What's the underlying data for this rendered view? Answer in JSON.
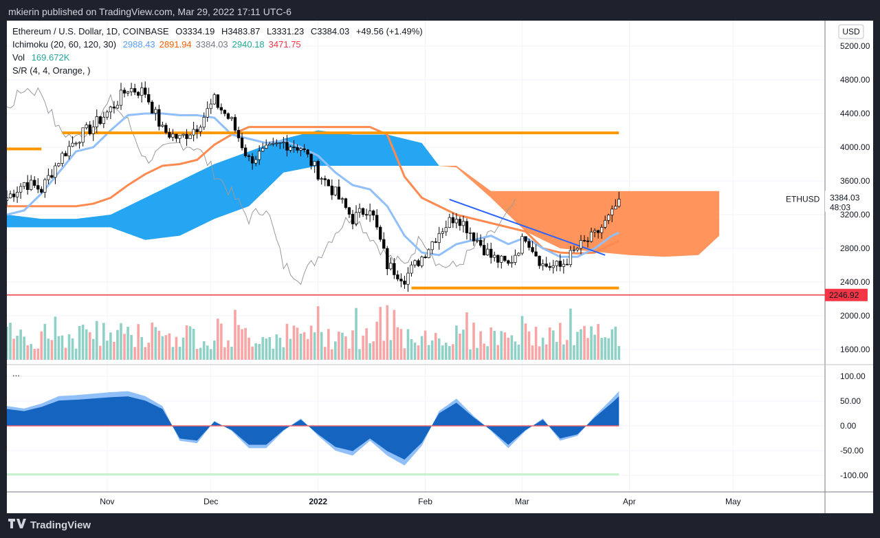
{
  "header": {
    "published": "mkierin published on TradingView.com, Mar 29, 2022 17:11 UTC-6"
  },
  "legend": {
    "symbol": "Ethereum / U.S. Dollar, 1D, COINBASE",
    "open": "O3334.19",
    "high": "H3483.87",
    "low": "L3331.23",
    "close": "C3384.03",
    "change": "+49.56 (+1.49%)",
    "ichimoku": "Ichimoku (20, 60, 120, 30)",
    "ichi_values": [
      {
        "v": "2988.43",
        "c": "#5b9cf6"
      },
      {
        "v": "2891.94",
        "c": "#ff5d00"
      },
      {
        "v": "3384.03",
        "c": "#787b86"
      },
      {
        "v": "2940.18",
        "c": "#22ab94"
      },
      {
        "v": "3471.75",
        "c": "#f23645"
      }
    ],
    "vol": "Vol",
    "vol_value": "169.672K",
    "sr": "S/R (4, 4, Orange, )",
    "osc": "..."
  },
  "price_axis": {
    "currency": "USD",
    "ticks": [
      "5200.00",
      "4800.00",
      "4400.00",
      "4000.00",
      "3600.00",
      "3200.00",
      "2800.00",
      "2400.00",
      "2000.00",
      "1600.00"
    ],
    "last_label": "3384.03",
    "countdown": "48:03",
    "symbol_label": "ETHUSD",
    "red_level_label": "2246.92"
  },
  "osc_axis": {
    "ticks": [
      "100.00",
      "50.00",
      "0.00",
      "-50.00",
      "-100.00"
    ]
  },
  "time_axis": {
    "ticks": [
      {
        "d": "2021-11-01",
        "t": "Nov"
      },
      {
        "d": "2021-12-01",
        "t": "Dec"
      },
      {
        "d": "2022-01-01",
        "t": "2022"
      },
      {
        "d": "2022-02-01",
        "t": "Feb"
      },
      {
        "d": "2022-03-01",
        "t": "Mar"
      },
      {
        "d": "2022-04-01",
        "t": "Apr"
      },
      {
        "d": "2022-05-01",
        "t": "May"
      }
    ]
  },
  "footer": {
    "brand": "TradingView"
  },
  "colors": {
    "up": "#26a69a",
    "down": "#000000",
    "tenkan": "#90bff9",
    "kijun": "#ff8a50",
    "cloud_bull": "#0097f0",
    "cloud_bear": "#ff8140",
    "sr": "#ff9800",
    "red_level": "#f23645",
    "trend": "#2962ff"
  },
  "chart_data": {
    "type": "candlestick",
    "ylim": [
      1500,
      5400
    ],
    "grid": true,
    "dates": [
      "2021-10-03",
      "2021-10-08",
      "2021-10-13",
      "2021-10-18",
      "2021-10-23",
      "2021-10-28",
      "2021-11-02",
      "2021-11-07",
      "2021-11-12",
      "2021-11-17",
      "2021-11-22",
      "2021-11-27",
      "2021-12-02",
      "2021-12-07",
      "2021-12-12",
      "2021-12-17",
      "2021-12-22",
      "2021-12-27",
      "2022-01-01",
      "2022-01-06",
      "2022-01-11",
      "2022-01-16",
      "2022-01-21",
      "2022-01-26",
      "2022-01-31",
      "2022-02-05",
      "2022-02-10",
      "2022-02-15",
      "2022-02-20",
      "2022-02-25",
      "2022-03-02",
      "2022-03-07",
      "2022-03-12",
      "2022-03-17",
      "2022-03-22",
      "2022-03-27",
      "2022-03-29"
    ],
    "close": [
      3400,
      3580,
      3500,
      3850,
      4100,
      4250,
      4450,
      4700,
      4650,
      4200,
      4100,
      4250,
      4550,
      4300,
      3850,
      3950,
      4050,
      4000,
      3700,
      3450,
      3150,
      3300,
      2600,
      2450,
      2700,
      3000,
      3200,
      2950,
      2700,
      2600,
      2950,
      2600,
      2580,
      2800,
      2950,
      3200,
      3384
    ],
    "tenkan": [
      3200,
      3250,
      3450,
      3700,
      3950,
      4000,
      4200,
      4380,
      4400,
      4400,
      4380,
      4380,
      4350,
      4150,
      4100,
      4050,
      4080,
      4000,
      3900,
      3700,
      3550,
      3500,
      3300,
      2950,
      2750,
      2720,
      2850,
      2900,
      2950,
      2850,
      2930,
      2800,
      2700,
      2700,
      2800,
      2950,
      2988
    ],
    "kijun": [
      3300,
      3300,
      3300,
      3300,
      3300,
      3330,
      3400,
      3550,
      3680,
      3780,
      3800,
      3850,
      4030,
      4150,
      4240,
      4240,
      4240,
      4240,
      4240,
      4240,
      4240,
      4240,
      4150,
      3650,
      3400,
      3300,
      3200,
      3150,
      3100,
      3050,
      3000,
      2800,
      2750,
      2740,
      2750,
      2850,
      2892
    ],
    "oscillator": [
      40,
      35,
      45,
      60,
      62,
      65,
      68,
      70,
      60,
      40,
      -30,
      -35,
      10,
      -10,
      -45,
      -45,
      -10,
      15,
      -20,
      -50,
      -60,
      -30,
      -60,
      -80,
      -40,
      30,
      55,
      20,
      -10,
      -45,
      -10,
      15,
      -30,
      -20,
      20,
      55,
      70
    ],
    "osc_ylim": [
      -110,
      110
    ],
    "cloud": {
      "dates": [
        "2021-10-03",
        "2021-10-13",
        "2021-10-23",
        "2021-11-02",
        "2021-11-12",
        "2021-11-22",
        "2021-12-02",
        "2021-12-12",
        "2021-12-22",
        "2022-01-01",
        "2022-01-11",
        "2022-01-21",
        "2022-01-31",
        "2022-02-05",
        "2022-02-10",
        "2022-02-20",
        "2022-03-02",
        "2022-03-12",
        "2022-03-22",
        "2022-04-01",
        "2022-04-11",
        "2022-04-21",
        "2022-04-27"
      ],
      "upper": [
        3200,
        3150,
        3150,
        3200,
        3400,
        3600,
        3800,
        3950,
        4100,
        4200,
        4150,
        4150,
        4050,
        3780,
        3780,
        3480,
        3480,
        3480,
        3480,
        3480,
        3480,
        3480,
        3480
      ],
      "lower": [
        3050,
        3050,
        3050,
        3050,
        2900,
        2950,
        3150,
        3300,
        3700,
        3780,
        3780,
        3780,
        3780,
        3780,
        3760,
        3400,
        3000,
        2800,
        2760,
        2720,
        2700,
        2720,
        2950
      ],
      "bull_until": "2022-02-05"
    },
    "sr_levels": [
      {
        "price": 4170,
        "from": "2021-10-19",
        "to": "2022-03-29"
      },
      {
        "price": 3980,
        "from": "2021-10-03",
        "to": "2021-10-13"
      },
      {
        "price": 2330,
        "from": "2022-01-28",
        "to": "2022-03-29"
      }
    ],
    "red_level": 2246.92,
    "trendline": {
      "from": {
        "d": "2022-02-08",
        "p": 3380
      },
      "to": {
        "d": "2022-03-25",
        "p": 2720
      }
    }
  }
}
